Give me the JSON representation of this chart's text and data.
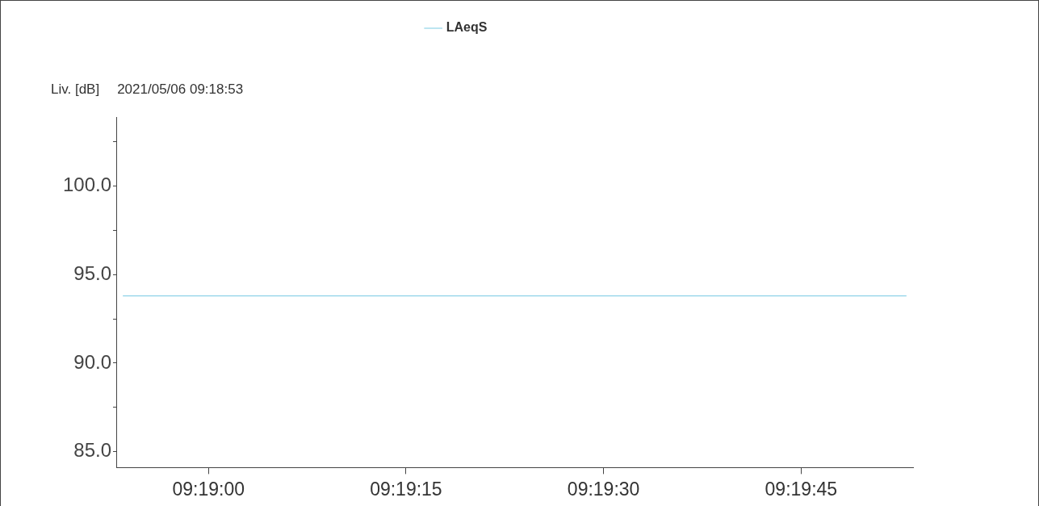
{
  "chart_data": {
    "type": "line",
    "subtitle": "2021/05/06 09:18:53",
    "ylabel": "Liv. [dB]",
    "x": [
      9.314861,
      9.331389
    ],
    "series": [
      {
        "name": "LAeqS",
        "color": "#8fd3e8",
        "values": [
          93.8,
          93.8
        ]
      }
    ],
    "xlim": [
      9.314722,
      9.331528
    ],
    "xticks": [
      {
        "value": 9.316667,
        "label": "09:19:00"
      },
      {
        "value": 9.320833,
        "label": "09:19:15"
      },
      {
        "value": 9.325,
        "label": "09:19:30"
      },
      {
        "value": 9.329167,
        "label": "09:19:45"
      }
    ],
    "ylim": [
      84.1,
      103.9
    ],
    "yticks": [
      {
        "value": 85,
        "label": "85.0"
      },
      {
        "value": 87.5,
        "label": null
      },
      {
        "value": 90,
        "label": "90.0"
      },
      {
        "value": 92.5,
        "label": null
      },
      {
        "value": 95,
        "label": "95.0"
      },
      {
        "value": 97.5,
        "label": null
      },
      {
        "value": 100,
        "label": "100.0"
      },
      {
        "value": 102.5,
        "label": null
      }
    ],
    "grid": false,
    "legend": "top",
    "marker": "none",
    "line_style": "solid"
  }
}
